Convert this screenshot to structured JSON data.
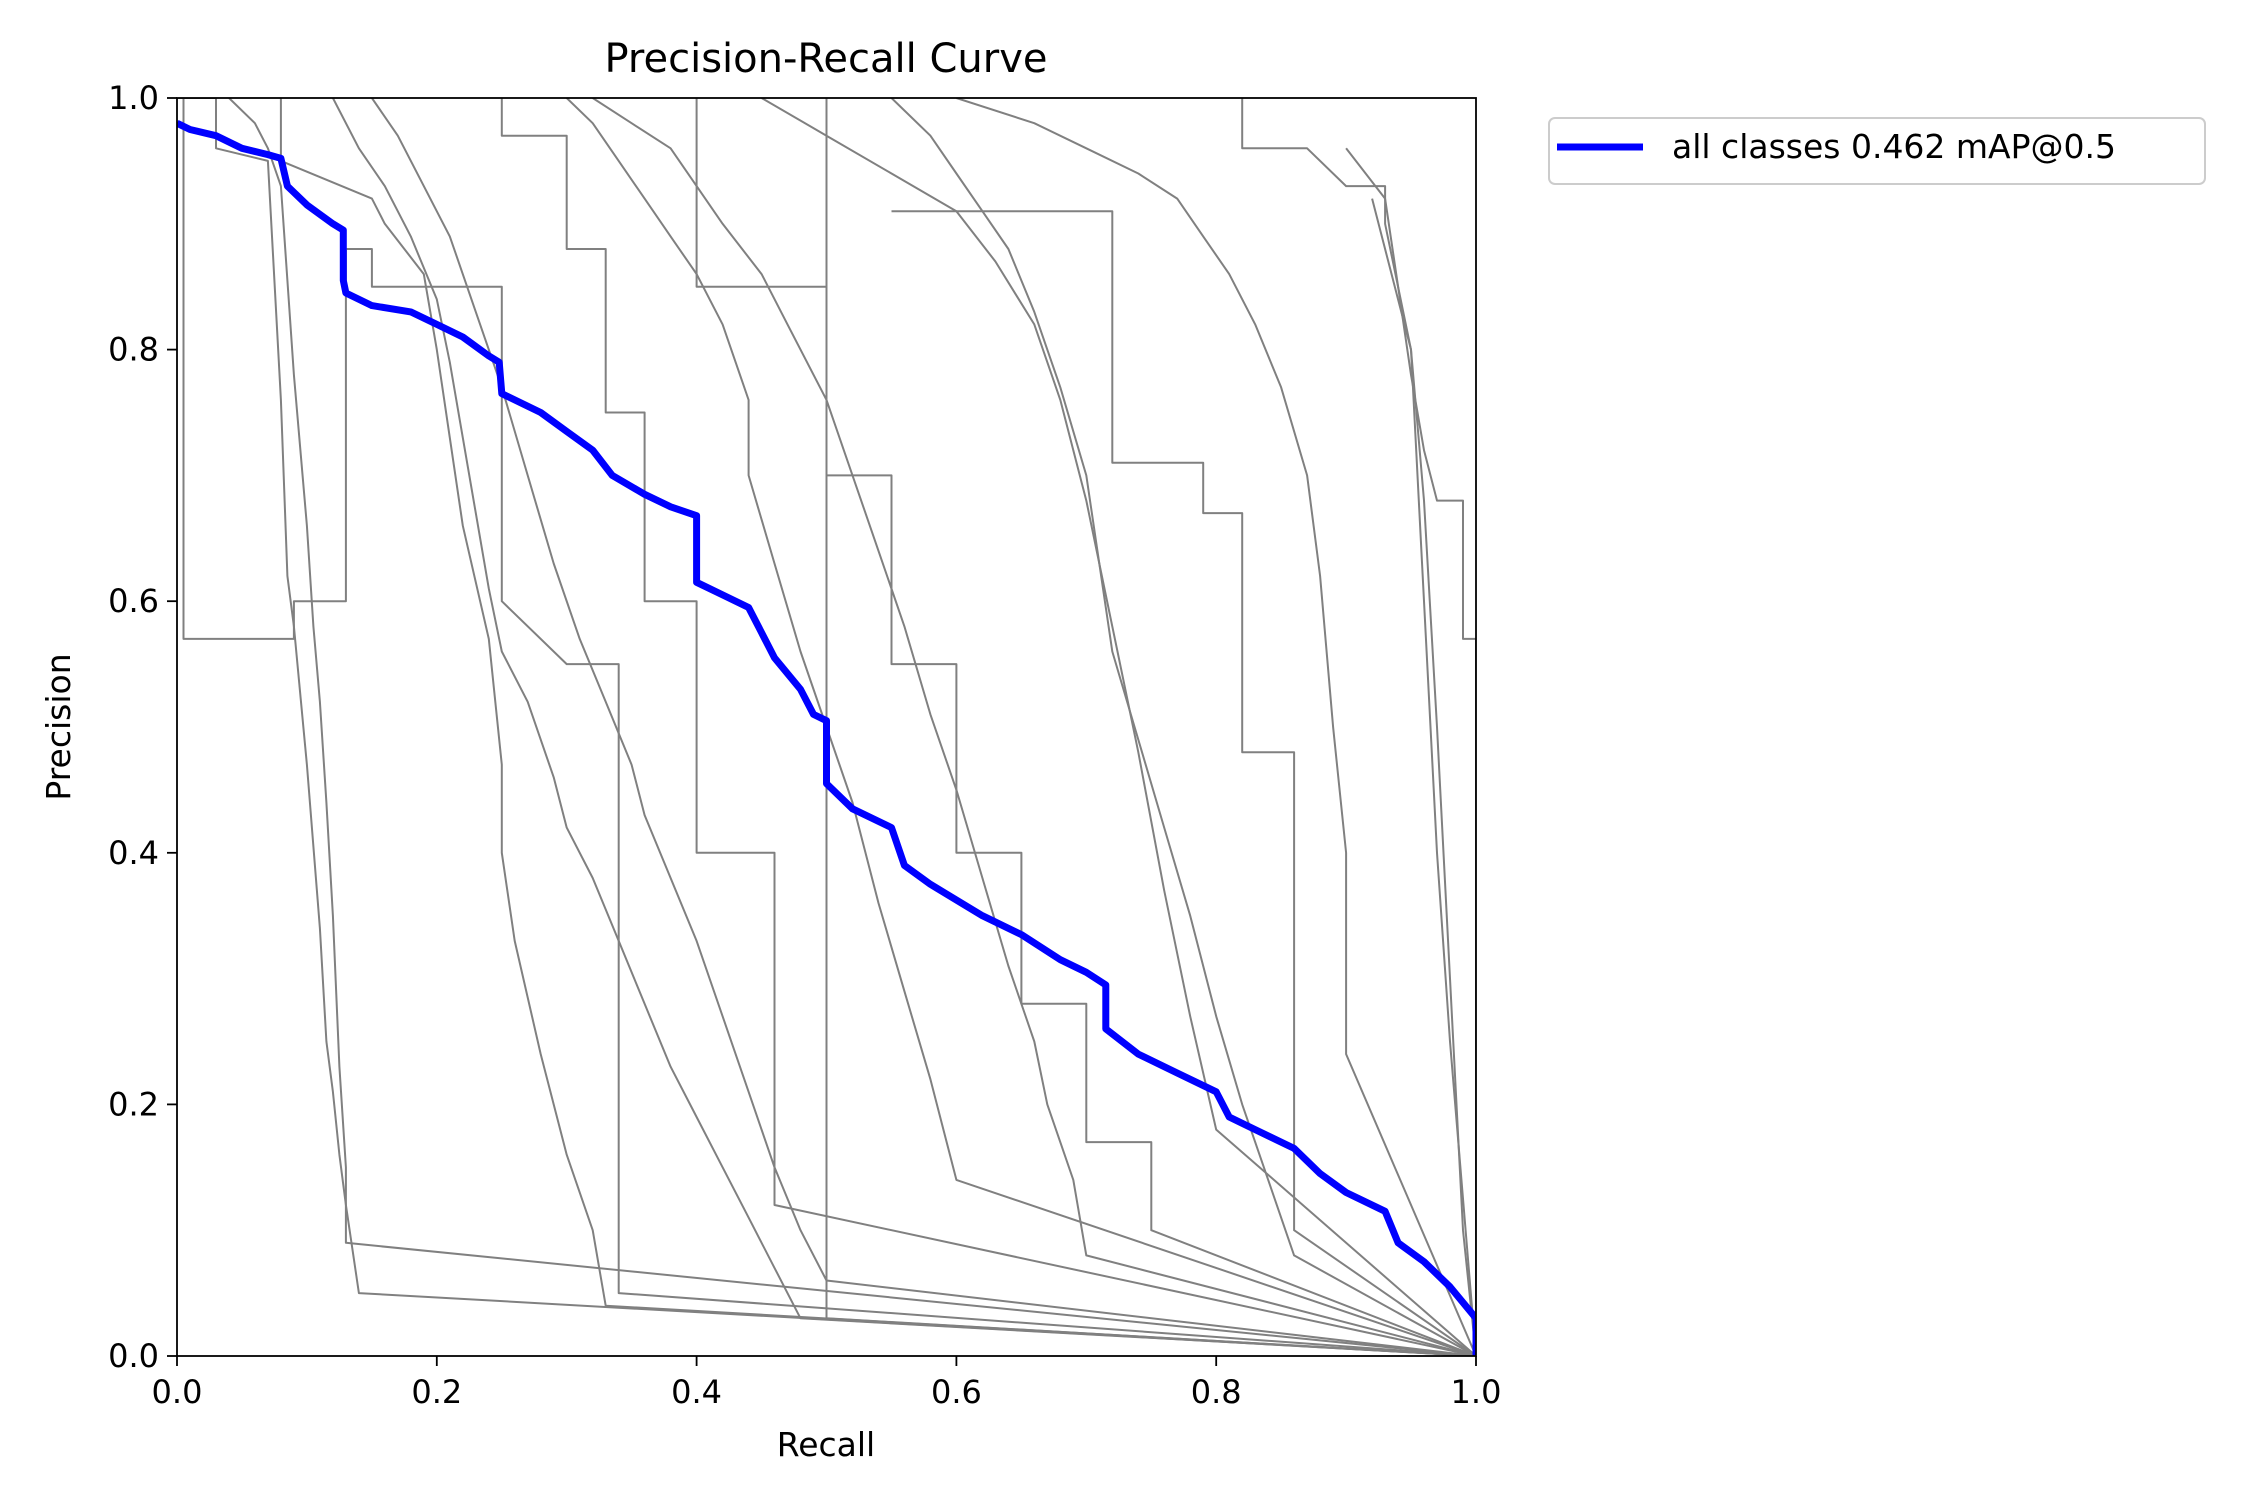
{
  "chart_data": {
    "type": "line",
    "title": "Precision-Recall Curve",
    "xlabel": "Recall",
    "ylabel": "Precision",
    "xlim": [
      0.0,
      1.0
    ],
    "ylim": [
      0.0,
      1.0
    ],
    "xticks": [
      "0.0",
      "0.2",
      "0.4",
      "0.6",
      "0.8",
      "1.0"
    ],
    "yticks": [
      "0.0",
      "0.2",
      "0.4",
      "0.6",
      "0.8",
      "1.0"
    ],
    "grid": false,
    "legend_position": "outside-top-right",
    "colors": {
      "class_curves": "#808080",
      "all_classes": "#0000ff",
      "axes": "#000000"
    },
    "series": [
      {
        "name": "all classes 0.462 mAP@0.5",
        "highlight": true,
        "x": [
          0.0,
          0.01,
          0.03,
          0.05,
          0.07,
          0.08,
          0.085,
          0.1,
          0.12,
          0.128,
          0.128,
          0.13,
          0.15,
          0.18,
          0.2,
          0.22,
          0.24,
          0.248,
          0.25,
          0.28,
          0.3,
          0.32,
          0.335,
          0.36,
          0.38,
          0.4,
          0.4,
          0.42,
          0.44,
          0.45,
          0.46,
          0.48,
          0.49,
          0.5,
          0.5,
          0.52,
          0.55,
          0.56,
          0.58,
          0.62,
          0.65,
          0.68,
          0.7,
          0.715,
          0.715,
          0.74,
          0.77,
          0.8,
          0.81,
          0.83,
          0.86,
          0.88,
          0.9,
          0.93,
          0.94,
          0.96,
          0.98,
          1.0,
          1.0
        ],
        "y": [
          0.98,
          0.975,
          0.97,
          0.96,
          0.955,
          0.952,
          0.93,
          0.915,
          0.9,
          0.895,
          0.855,
          0.845,
          0.835,
          0.83,
          0.82,
          0.81,
          0.795,
          0.79,
          0.765,
          0.75,
          0.735,
          0.72,
          0.7,
          0.685,
          0.675,
          0.668,
          0.615,
          0.605,
          0.595,
          0.575,
          0.555,
          0.53,
          0.51,
          0.505,
          0.455,
          0.435,
          0.42,
          0.39,
          0.375,
          0.35,
          0.335,
          0.315,
          0.305,
          0.295,
          0.26,
          0.24,
          0.225,
          0.21,
          0.19,
          0.18,
          0.165,
          0.145,
          0.13,
          0.115,
          0.09,
          0.075,
          0.055,
          0.03,
          0.0
        ]
      },
      {
        "x": [
          0.0,
          0.03,
          0.03,
          0.07,
          0.08,
          0.085,
          0.09,
          0.1,
          0.11,
          0.115,
          0.12,
          0.125,
          0.13,
          0.14,
          1.0
        ],
        "y": [
          1.0,
          1.0,
          0.96,
          0.95,
          0.76,
          0.62,
          0.58,
          0.47,
          0.34,
          0.25,
          0.21,
          0.16,
          0.12,
          0.05,
          0.0
        ]
      },
      {
        "x": [
          0.04,
          0.06,
          0.07,
          0.08,
          0.09,
          0.1,
          0.105,
          0.11,
          0.115,
          0.12,
          0.125,
          0.13,
          0.13,
          1.0
        ],
        "y": [
          1.0,
          0.98,
          0.96,
          0.93,
          0.78,
          0.66,
          0.58,
          0.52,
          0.44,
          0.35,
          0.23,
          0.15,
          0.09,
          0.0
        ]
      },
      {
        "x": [
          0.005,
          0.005,
          0.09,
          0.09,
          0.13,
          0.13,
          0.15,
          0.15,
          0.25,
          0.25,
          0.3,
          0.34,
          0.34,
          1.0
        ],
        "y": [
          1.0,
          0.57,
          0.57,
          0.6,
          0.6,
          0.88,
          0.88,
          0.85,
          0.85,
          0.6,
          0.55,
          0.55,
          0.05,
          0.0
        ]
      },
      {
        "x": [
          0.08,
          0.08,
          0.15,
          0.16,
          0.19,
          0.2,
          0.21,
          0.22,
          0.24,
          0.25,
          0.25,
          0.26,
          0.28,
          0.3,
          0.32,
          0.33,
          1.0
        ],
        "y": [
          1.0,
          0.95,
          0.92,
          0.9,
          0.86,
          0.8,
          0.73,
          0.66,
          0.57,
          0.47,
          0.4,
          0.33,
          0.24,
          0.16,
          0.1,
          0.04,
          0.0
        ]
      },
      {
        "x": [
          0.12,
          0.14,
          0.16,
          0.18,
          0.2,
          0.21,
          0.22,
          0.23,
          0.24,
          0.25,
          0.27,
          0.29,
          0.3,
          0.32,
          0.34,
          0.36,
          0.38,
          0.4,
          0.42,
          0.44,
          0.46,
          0.48,
          1.0
        ],
        "y": [
          1.0,
          0.96,
          0.93,
          0.89,
          0.84,
          0.79,
          0.73,
          0.67,
          0.61,
          0.56,
          0.52,
          0.46,
          0.42,
          0.38,
          0.33,
          0.28,
          0.23,
          0.19,
          0.15,
          0.11,
          0.07,
          0.03,
          0.0
        ]
      },
      {
        "x": [
          0.15,
          0.17,
          0.19,
          0.21,
          0.23,
          0.25,
          0.27,
          0.29,
          0.31,
          0.33,
          0.35,
          0.36,
          0.38,
          0.4,
          0.42,
          0.44,
          0.46,
          0.48,
          0.5,
          1.0
        ],
        "y": [
          1.0,
          0.97,
          0.93,
          0.89,
          0.83,
          0.77,
          0.7,
          0.63,
          0.57,
          0.52,
          0.47,
          0.43,
          0.38,
          0.33,
          0.27,
          0.21,
          0.15,
          0.1,
          0.06,
          0.0
        ]
      },
      {
        "x": [
          0.25,
          0.25,
          0.3,
          0.3,
          0.33,
          0.33,
          0.36,
          0.36,
          0.4,
          0.4,
          0.46,
          0.46,
          1.0
        ],
        "y": [
          1.0,
          0.97,
          0.97,
          0.88,
          0.88,
          0.75,
          0.75,
          0.6,
          0.6,
          0.4,
          0.4,
          0.12,
          0.0
        ]
      },
      {
        "x": [
          0.3,
          0.32,
          0.34,
          0.36,
          0.38,
          0.4,
          0.42,
          0.44,
          0.44,
          0.46,
          0.48,
          0.5,
          0.52,
          0.54,
          0.56,
          0.58,
          0.6,
          1.0
        ],
        "y": [
          1.0,
          0.98,
          0.95,
          0.92,
          0.89,
          0.86,
          0.82,
          0.76,
          0.7,
          0.63,
          0.56,
          0.5,
          0.44,
          0.36,
          0.29,
          0.22,
          0.14,
          0.0
        ]
      },
      {
        "x": [
          0.32,
          0.35,
          0.38,
          0.4,
          0.42,
          0.45,
          0.47,
          0.5,
          0.52,
          0.54,
          0.56,
          0.58,
          0.6,
          0.62,
          0.64,
          0.66,
          0.67,
          0.69,
          0.7,
          1.0
        ],
        "y": [
          1.0,
          0.98,
          0.96,
          0.93,
          0.9,
          0.86,
          0.82,
          0.76,
          0.7,
          0.64,
          0.58,
          0.51,
          0.45,
          0.38,
          0.31,
          0.25,
          0.2,
          0.14,
          0.08,
          0.0
        ]
      },
      {
        "x": [
          0.4,
          0.4,
          0.5,
          0.5,
          0.55,
          0.55,
          0.6,
          0.6,
          0.65,
          0.65,
          0.7,
          0.7,
          0.75,
          0.75,
          1.0
        ],
        "y": [
          1.0,
          0.85,
          0.85,
          0.7,
          0.7,
          0.55,
          0.55,
          0.4,
          0.4,
          0.28,
          0.28,
          0.17,
          0.17,
          0.1,
          0.0
        ]
      },
      {
        "x": [
          0.45,
          0.5,
          0.55,
          0.6,
          0.63,
          0.66,
          0.68,
          0.7,
          0.72,
          0.74,
          0.76,
          0.78,
          0.8,
          1.0
        ],
        "y": [
          1.0,
          0.97,
          0.94,
          0.91,
          0.87,
          0.82,
          0.76,
          0.68,
          0.58,
          0.48,
          0.37,
          0.27,
          0.18,
          0.0
        ]
      },
      {
        "x": [
          0.5,
          0.5,
          1.0
        ],
        "y": [
          1.0,
          0.03,
          0.0
        ]
      },
      {
        "x": [
          0.55,
          0.58,
          0.6,
          0.62,
          0.64,
          0.66,
          0.68,
          0.7,
          0.71,
          0.72,
          0.74,
          0.76,
          0.78,
          0.8,
          0.82,
          0.84,
          0.86,
          1.0
        ],
        "y": [
          1.0,
          0.97,
          0.94,
          0.91,
          0.88,
          0.83,
          0.77,
          0.7,
          0.63,
          0.56,
          0.49,
          0.42,
          0.35,
          0.27,
          0.2,
          0.14,
          0.08,
          0.0
        ]
      },
      {
        "x": [
          0.55,
          0.72,
          0.72,
          0.79,
          0.79,
          0.82,
          0.82,
          0.86,
          0.86,
          1.0
        ],
        "y": [
          0.91,
          0.91,
          0.71,
          0.71,
          0.67,
          0.67,
          0.48,
          0.48,
          0.1,
          0.0
        ]
      },
      {
        "x": [
          0.6,
          0.66,
          0.7,
          0.74,
          0.77,
          0.79,
          0.81,
          0.83,
          0.85,
          0.87,
          0.88,
          0.89,
          0.9,
          0.9,
          1.0
        ],
        "y": [
          1.0,
          0.98,
          0.96,
          0.94,
          0.92,
          0.89,
          0.86,
          0.82,
          0.77,
          0.7,
          0.62,
          0.5,
          0.4,
          0.24,
          0.0
        ]
      },
      {
        "x": [
          0.82,
          0.82,
          0.84,
          0.87,
          0.9,
          0.93,
          0.93,
          0.95,
          0.96,
          0.97,
          0.98,
          0.99,
          1.0
        ],
        "y": [
          1.0,
          0.96,
          0.96,
          0.96,
          0.93,
          0.93,
          0.9,
          0.8,
          0.68,
          0.5,
          0.3,
          0.1,
          0.0
        ]
      },
      {
        "x": [
          0.9,
          0.93,
          0.94,
          0.95,
          0.96,
          0.97,
          0.97,
          0.99,
          0.99,
          1.0,
          1.0
        ],
        "y": [
          0.96,
          0.92,
          0.85,
          0.78,
          0.72,
          0.68,
          0.68,
          0.68,
          0.57,
          0.57,
          0.0
        ]
      },
      {
        "x": [
          0.92,
          0.95,
          0.96,
          0.97,
          0.98,
          1.0
        ],
        "y": [
          0.92,
          0.8,
          0.6,
          0.4,
          0.25,
          0.0
        ]
      }
    ]
  }
}
